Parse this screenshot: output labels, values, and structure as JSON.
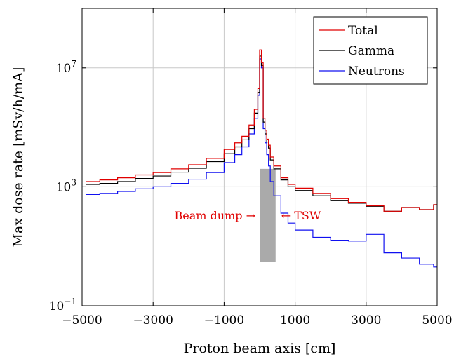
{
  "chart_data": {
    "type": "line",
    "xlabel": "Proton beam axis [cm]",
    "ylabel": "Max dose rate [mSv/h/mA]",
    "xlim": [
      -5000,
      5000
    ],
    "y_scale": "log",
    "ylim": [
      0.1,
      1000000000
    ],
    "grid": true,
    "legend_position": "top-right",
    "x_ticks": [
      -5000,
      -3000,
      -1000,
      1000,
      3000,
      5000
    ],
    "x_tick_labels": [
      "−5000",
      "−3000",
      "−1000",
      "1000",
      "3000",
      "5000"
    ],
    "y_ticks": [
      0.1,
      1000,
      10000000
    ],
    "y_tick_labels": [
      {
        "base": "10",
        "exp": "−1"
      },
      {
        "base": "10",
        "exp": "3"
      },
      {
        "base": "10",
        "exp": "7"
      }
    ],
    "x": [
      -4900,
      -4500,
      -4000,
      -3500,
      -3000,
      -2500,
      -2000,
      -1500,
      -1000,
      -700,
      -500,
      -300,
      -150,
      -50,
      0,
      50,
      100,
      150,
      200,
      250,
      300,
      400,
      600,
      800,
      1000,
      1500,
      2000,
      2500,
      3000,
      3500,
      4000,
      4500,
      4900
    ],
    "series": [
      {
        "name": "Total",
        "color": "#e00000",
        "values": [
          1500,
          1700,
          2000,
          2500,
          3000,
          4000,
          5500,
          9000,
          18000,
          30000,
          50000,
          120000,
          400000,
          2000000,
          40000000,
          15000000,
          200000,
          80000,
          40000,
          25000,
          10000,
          5000,
          2000,
          1200,
          900,
          600,
          400,
          300,
          230,
          150,
          200,
          170,
          250
        ]
      },
      {
        "name": "Gamma",
        "color": "#000000",
        "values": [
          1200,
          1300,
          1500,
          1900,
          2300,
          3100,
          4200,
          7000,
          13000,
          22000,
          38000,
          90000,
          300000,
          1500000,
          25000000,
          12000000,
          150000,
          60000,
          32000,
          20000,
          8000,
          4000,
          1700,
          1000,
          750,
          500,
          350,
          280,
          220,
          150,
          200,
          170,
          250
        ]
      },
      {
        "name": "Neutrons",
        "color": "#1010f0",
        "values": [
          550,
          600,
          700,
          850,
          1000,
          1300,
          1800,
          3000,
          6500,
          12000,
          22000,
          60000,
          200000,
          1200000,
          20000000,
          10000000,
          90000,
          30000,
          12000,
          5000,
          1500,
          500,
          130,
          60,
          35,
          20,
          16,
          15,
          25,
          6,
          4,
          2.5,
          2
        ]
      }
    ],
    "annotations": [
      {
        "label": "Beam dump →",
        "color": "#e00000"
      },
      {
        "label": "← TSW",
        "color": "#e00000"
      }
    ],
    "shaded_region": {
      "x": [
        0,
        450
      ],
      "y": [
        3,
        4000
      ]
    }
  }
}
